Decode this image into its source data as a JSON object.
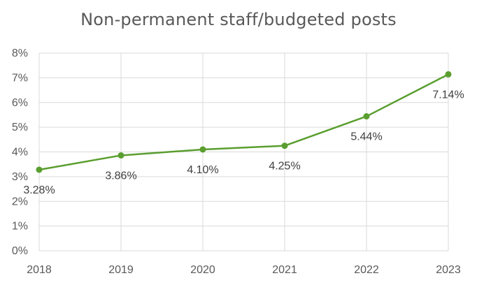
{
  "chart_data": {
    "type": "line",
    "title": "Non-permanent staff/budgeted posts",
    "xlabel": "",
    "ylabel": "",
    "categories": [
      "2018",
      "2019",
      "2020",
      "2021",
      "2022",
      "2023"
    ],
    "series": [
      {
        "values": [
          3.28,
          3.86,
          4.1,
          4.25,
          5.44,
          7.14
        ],
        "data_labels": [
          "3.28%",
          "3.86%",
          "4.10%",
          "4.25%",
          "5.44%",
          "7.14%"
        ],
        "color": "#5a9e2f"
      }
    ],
    "ylim": [
      0,
      8
    ],
    "yticks": [
      "0%",
      "1%",
      "2%",
      "3%",
      "4%",
      "5%",
      "6%",
      "7%",
      "8%"
    ],
    "grid": true,
    "legend": "none"
  }
}
